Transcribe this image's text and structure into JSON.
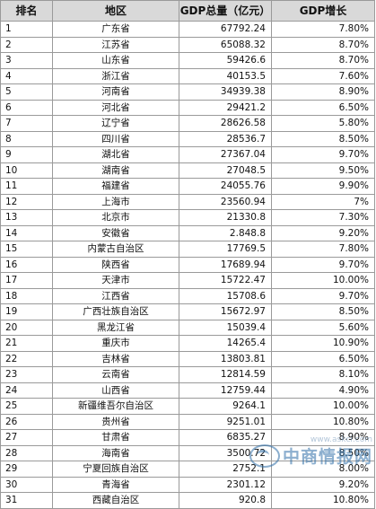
{
  "table": {
    "headers": {
      "rank": "排名",
      "region": "地区",
      "gdp": "GDP总量（亿元）",
      "growth": "GDP增长"
    },
    "rows": [
      {
        "rank": "1",
        "region": "广东省",
        "gdp": "67792.24",
        "growth": "7.80%"
      },
      {
        "rank": "2",
        "region": "江苏省",
        "gdp": "65088.32",
        "growth": "8.70%"
      },
      {
        "rank": "3",
        "region": "山东省",
        "gdp": "59426.6",
        "growth": "8.70%"
      },
      {
        "rank": "4",
        "region": "浙江省",
        "gdp": "40153.5",
        "growth": "7.60%"
      },
      {
        "rank": "5",
        "region": "河南省",
        "gdp": "34939.38",
        "growth": "8.90%"
      },
      {
        "rank": "6",
        "region": "河北省",
        "gdp": "29421.2",
        "growth": "6.50%"
      },
      {
        "rank": "7",
        "region": "辽宁省",
        "gdp": "28626.58",
        "growth": "5.80%"
      },
      {
        "rank": "8",
        "region": "四川省",
        "gdp": "28536.7",
        "growth": "8.50%"
      },
      {
        "rank": "9",
        "region": "湖北省",
        "gdp": "27367.04",
        "growth": "9.70%"
      },
      {
        "rank": "10",
        "region": "湖南省",
        "gdp": "27048.5",
        "growth": "9.50%"
      },
      {
        "rank": "11",
        "region": "福建省",
        "gdp": "24055.76",
        "growth": "9.90%"
      },
      {
        "rank": "12",
        "region": "上海市",
        "gdp": "23560.94",
        "growth": "7%"
      },
      {
        "rank": "13",
        "region": "北京市",
        "gdp": "21330.8",
        "growth": "7.30%"
      },
      {
        "rank": "14",
        "region": "安徽省",
        "gdp": "2.848.8",
        "growth": "9.20%"
      },
      {
        "rank": "15",
        "region": "内蒙古自治区",
        "gdp": "17769.5",
        "growth": "7.80%"
      },
      {
        "rank": "16",
        "region": "陕西省",
        "gdp": "17689.94",
        "growth": "9.70%"
      },
      {
        "rank": "17",
        "region": "天津市",
        "gdp": "15722.47",
        "growth": "10.00%"
      },
      {
        "rank": "18",
        "region": "江西省",
        "gdp": "15708.6",
        "growth": "9.70%"
      },
      {
        "rank": "19",
        "region": "广西壮族自治区",
        "gdp": "15672.97",
        "growth": "8.50%"
      },
      {
        "rank": "20",
        "region": "黑龙江省",
        "gdp": "15039.4",
        "growth": "5.60%"
      },
      {
        "rank": "21",
        "region": "重庆市",
        "gdp": "14265.4",
        "growth": "10.90%"
      },
      {
        "rank": "22",
        "region": "吉林省",
        "gdp": "13803.81",
        "growth": "6.50%"
      },
      {
        "rank": "23",
        "region": "云南省",
        "gdp": "12814.59",
        "growth": "8.10%"
      },
      {
        "rank": "24",
        "region": "山西省",
        "gdp": "12759.44",
        "growth": "4.90%"
      },
      {
        "rank": "25",
        "region": "新疆维吾尔自治区",
        "gdp": "9264.1",
        "growth": "10.00%"
      },
      {
        "rank": "26",
        "region": "贵州省",
        "gdp": "9251.01",
        "growth": "10.80%"
      },
      {
        "rank": "27",
        "region": "甘肃省",
        "gdp": "6835.27",
        "growth": "8.90%"
      },
      {
        "rank": "28",
        "region": "海南省",
        "gdp": "3500.72",
        "growth": "8.50%"
      },
      {
        "rank": "29",
        "region": "宁夏回族自治区",
        "gdp": "2752.1",
        "growth": "8.00%"
      },
      {
        "rank": "30",
        "region": "青海省",
        "gdp": "2301.12",
        "growth": "9.20%"
      },
      {
        "rank": "31",
        "region": "西藏自治区",
        "gdp": "920.8",
        "growth": "10.80%"
      }
    ]
  },
  "watermark": {
    "text": "中商情报网",
    "url": "www.askci.com"
  }
}
